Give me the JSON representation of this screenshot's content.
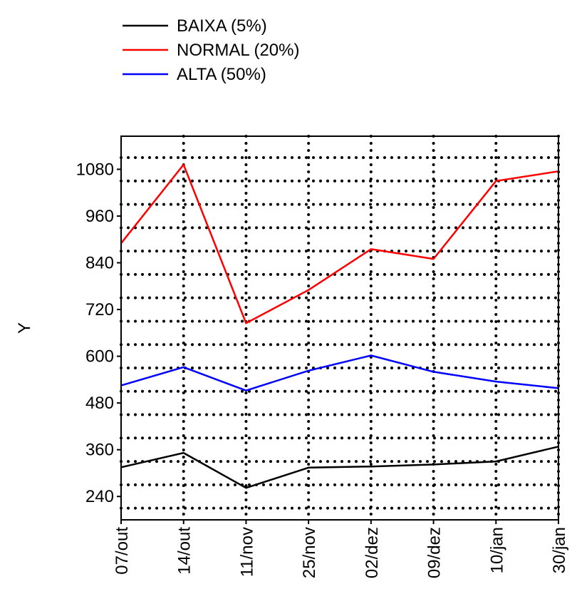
{
  "chart_data": {
    "type": "line",
    "title": "",
    "xlabel": "",
    "ylabel": "Y",
    "categories": [
      "07/out",
      "14/out",
      "11/nov",
      "25/nov",
      "02/dez",
      "09/dez",
      "10/jan",
      "30/jan"
    ],
    "ylim": [
      180,
      1165
    ],
    "yticks": [
      240,
      360,
      480,
      600,
      720,
      840,
      960,
      1080
    ],
    "grid": true,
    "grid_style": "dotted",
    "legend_position": "top-left",
    "series": [
      {
        "name": "BAIXA (5%)",
        "color": "#000000",
        "values": [
          315,
          352,
          262,
          314,
          317,
          322,
          330,
          368
        ]
      },
      {
        "name": "NORMAL (20%)",
        "color": "#ff0000",
        "values": [
          890,
          1092,
          685,
          770,
          875,
          850,
          1050,
          1075
        ]
      },
      {
        "name": "ALTA (50%)",
        "color": "#0000ff",
        "values": [
          525,
          572,
          512,
          563,
          602,
          560,
          535,
          518
        ]
      }
    ]
  }
}
